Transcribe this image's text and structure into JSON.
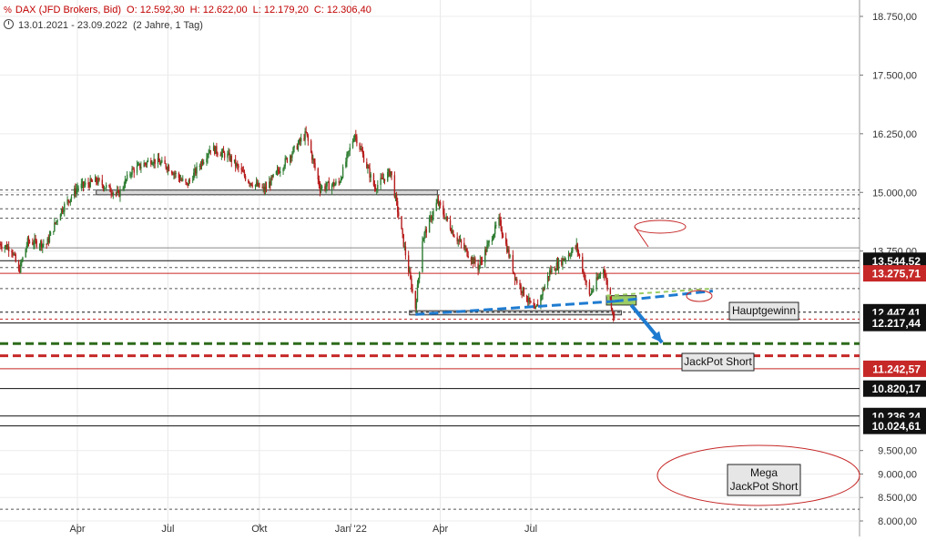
{
  "header": {
    "symbol_icon": "percent-chart-icon",
    "symbol_glyph": "%",
    "instrument": "DAX (JFD Brokers, Bid)",
    "open": "O: 12.592,30",
    "high": "H: 12.622,00",
    "low": "L: 12.179,20",
    "close": "C: 12.306,40",
    "range_icon": "clock-icon",
    "date_range": "13.01.2021 - 23.09.2022",
    "period": "(2 Jahre, 1 Tag)"
  },
  "colors": {
    "candle_up": "#2e7d32",
    "candle_down": "#b71c1c",
    "price_red": "#c62828",
    "price_black": "#111111",
    "trend_blue": "#1e7bd0",
    "target_green": "#2e6b1c"
  },
  "chart_data": {
    "type": "candlestick",
    "title": "",
    "xlabel": "",
    "ylabel": "",
    "ylim": [
      8000,
      19000
    ],
    "y_ticks": [
      "18.750,00",
      "17.500,00",
      "16.250,00",
      "15.000,00",
      "13.750,00",
      "9.500,00",
      "9.000,00",
      "8.500,00",
      "8.000,00"
    ],
    "y_tick_values": [
      18750,
      17500,
      16250,
      15000,
      13750,
      9500,
      9000,
      8500,
      8000
    ],
    "x_ticks": [
      {
        "label": "Apr",
        "date": "2021-04-01"
      },
      {
        "label": "Jul",
        "date": "2021-07-01"
      },
      {
        "label": "Okt",
        "date": "2021-10-01"
      },
      {
        "label": "Jan '22",
        "date": "2022-01-01"
      },
      {
        "label": "Apr",
        "date": "2022-04-01"
      },
      {
        "label": "Jul",
        "date": "2022-07-01"
      }
    ],
    "date_start": "2021-01-13",
    "date_end": "2022-09-23",
    "price_path": [
      {
        "date": "2021-01-13",
        "value": 13900
      },
      {
        "date": "2021-01-25",
        "value": 13800
      },
      {
        "date": "2021-02-01",
        "value": 13300
      },
      {
        "date": "2021-02-10",
        "value": 13950
      },
      {
        "date": "2021-03-01",
        "value": 13900
      },
      {
        "date": "2021-03-15",
        "value": 14600
      },
      {
        "date": "2021-04-01",
        "value": 15100
      },
      {
        "date": "2021-04-20",
        "value": 15250
      },
      {
        "date": "2021-05-12",
        "value": 14950
      },
      {
        "date": "2021-05-25",
        "value": 15450
      },
      {
        "date": "2021-06-15",
        "value": 15700
      },
      {
        "date": "2021-07-01",
        "value": 15550
      },
      {
        "date": "2021-07-20",
        "value": 15150
      },
      {
        "date": "2021-08-13",
        "value": 15950
      },
      {
        "date": "2021-09-01",
        "value": 15750
      },
      {
        "date": "2021-09-20",
        "value": 15250
      },
      {
        "date": "2021-10-06",
        "value": 15050
      },
      {
        "date": "2021-10-25",
        "value": 15600
      },
      {
        "date": "2021-11-17",
        "value": 16250
      },
      {
        "date": "2021-12-01",
        "value": 15100
      },
      {
        "date": "2021-12-20",
        "value": 15200
      },
      {
        "date": "2022-01-05",
        "value": 16250
      },
      {
        "date": "2022-01-25",
        "value": 15100
      },
      {
        "date": "2022-02-10",
        "value": 15450
      },
      {
        "date": "2022-02-24",
        "value": 13800
      },
      {
        "date": "2022-03-07",
        "value": 12550
      },
      {
        "date": "2022-03-14",
        "value": 14000
      },
      {
        "date": "2022-03-29",
        "value": 14800
      },
      {
        "date": "2022-04-15",
        "value": 14100
      },
      {
        "date": "2022-05-09",
        "value": 13400
      },
      {
        "date": "2022-05-30",
        "value": 14400
      },
      {
        "date": "2022-06-16",
        "value": 13150
      },
      {
        "date": "2022-07-05",
        "value": 12450
      },
      {
        "date": "2022-07-20",
        "value": 13300
      },
      {
        "date": "2022-08-16",
        "value": 13850
      },
      {
        "date": "2022-08-29",
        "value": 12800
      },
      {
        "date": "2022-09-12",
        "value": 13400
      },
      {
        "date": "2022-09-23",
        "value": 12300
      }
    ],
    "horizontal_levels": [
      {
        "value": 15050,
        "style": "dashed",
        "color": "#555555"
      },
      {
        "value": 14950,
        "style": "dashed",
        "color": "#555555"
      },
      {
        "value": 14650,
        "style": "dashed",
        "color": "#555555"
      },
      {
        "value": 14450,
        "style": "dashed",
        "color": "#555555"
      },
      {
        "value": 13820,
        "style": "solid",
        "color": "#888888"
      },
      {
        "value": 13544.52,
        "style": "solid",
        "color": "#111111",
        "label": "13.544,52",
        "label_bg": "#111111"
      },
      {
        "value": 13400,
        "style": "dashed",
        "color": "#555555"
      },
      {
        "value": 13275.71,
        "style": "solid",
        "color": "#c62828",
        "label": "13.275,71",
        "label_bg": "#c62828"
      },
      {
        "value": 12950,
        "style": "dashed",
        "color": "#555555"
      },
      {
        "value": 12447.41,
        "style": "dashed",
        "color": "#111111",
        "label": "12.447,41",
        "label_bg": "#111111"
      },
      {
        "value": 12300,
        "style": "dashed",
        "color": "#c62828"
      },
      {
        "value": 12217.44,
        "style": "solid",
        "color": "#111111",
        "label": "12.217,44",
        "label_bg": "#111111"
      },
      {
        "value": 11780,
        "style": "bold-dashed",
        "color": "#2e6b1c"
      },
      {
        "value": 11520,
        "style": "bold-dashed",
        "color": "#c62828"
      },
      {
        "value": 11242.57,
        "style": "solid",
        "color": "#c62828",
        "label": "11.242,57",
        "label_bg": "#c62828"
      },
      {
        "value": 10820.17,
        "style": "solid",
        "color": "#111111",
        "label": "10.820,17",
        "label_bg": "#111111"
      },
      {
        "value": 10236.24,
        "style": "solid",
        "color": "#111111",
        "label": "10.236,24",
        "label_bg": "#111111"
      },
      {
        "value": 10024.61,
        "style": "solid",
        "color": "#111111",
        "label": "10.024,61",
        "label_bg": "#111111"
      },
      {
        "value": 8250,
        "style": "dashed",
        "color": "#555555"
      }
    ],
    "zones": [
      {
        "date_from": "2021-04-20",
        "date_to": "2022-03-29",
        "value_from": 14950,
        "value_to": 15050,
        "color": "#d8d8d8"
      },
      {
        "date_from": "2022-03-01",
        "date_to": "2022-09-30",
        "value_from": 12390,
        "value_to": 12480,
        "color": "#d8d8d8"
      },
      {
        "date_from": "2022-09-15",
        "date_to": "2022-10-15",
        "value_from": 12600,
        "value_to": 12800,
        "color": "#9ccc65"
      }
    ],
    "trendlines": [
      {
        "from": {
          "date": "2022-03-07",
          "value": 12400
        },
        "to": {
          "date": "2022-09-23",
          "value": 12680
        },
        "color": "#1e7bd0",
        "style": "bold-dashed"
      },
      {
        "from": {
          "date": "2022-09-23",
          "value": 12680
        },
        "to": {
          "date": "2022-12-31",
          "value": 12900
        },
        "color": "#1e7bd0",
        "style": "bold-dashed"
      },
      {
        "from": {
          "date": "2022-09-15",
          "value": 12800
        },
        "to": {
          "date": "2022-12-31",
          "value": 12950
        },
        "color": "#9ccc65",
        "style": "dashed"
      }
    ],
    "arrow": {
      "from": {
        "date": "2022-10-10",
        "value": 12600
      },
      "to": {
        "date": "2022-11-10",
        "value": 11800
      },
      "color": "#1e7bd0"
    },
    "annotations": [
      {
        "text": "Hauptgewinn",
        "date": "2022-12-01",
        "value": 11400
      },
      {
        "text": "JackPot Short",
        "date": "2022-11-20",
        "value": 10480
      },
      {
        "text": "Mega",
        "date": "2022-12-01",
        "value": 8700
      },
      {
        "text": "JackPot Short",
        "date": "2022-12-01",
        "value": 8500
      }
    ]
  }
}
